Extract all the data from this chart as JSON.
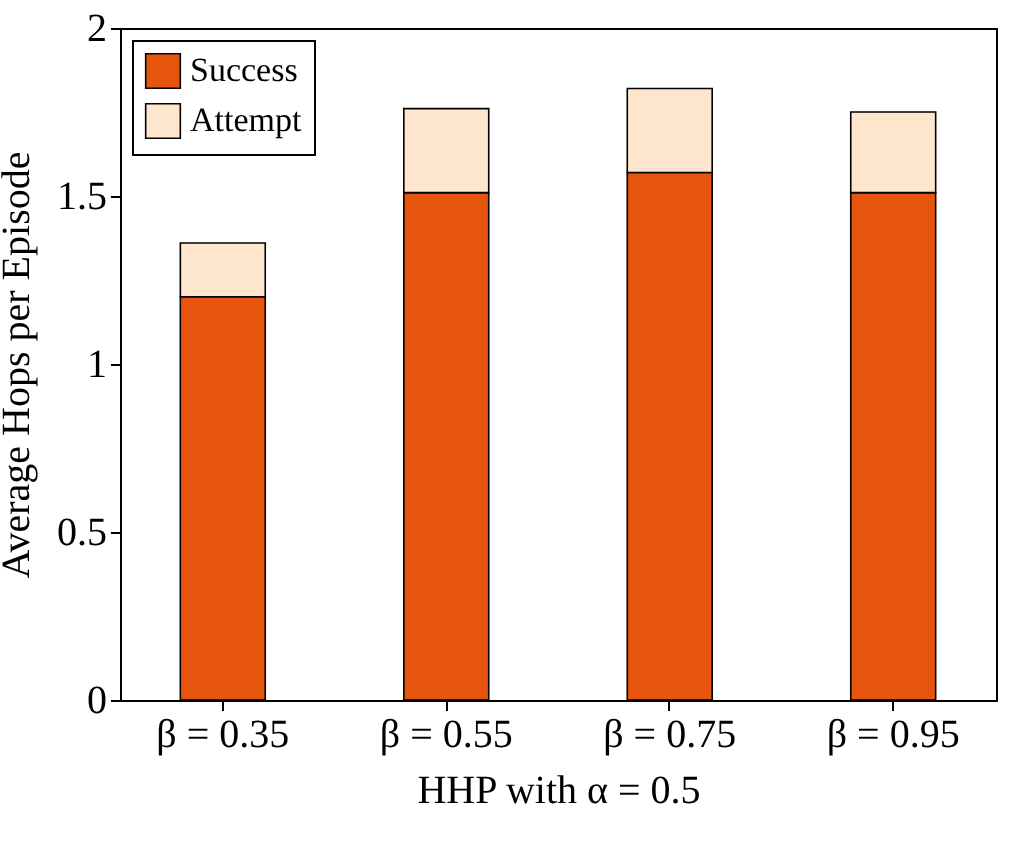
{
  "chart_data": {
    "type": "bar",
    "stacked": true,
    "xlabel": "HHP with α = 0.5",
    "ylabel": "Average Hops per Episode",
    "categories": [
      "β = 0.35",
      "β = 0.55",
      "β = 0.75",
      "β = 0.95"
    ],
    "series": [
      {
        "name": "Success",
        "color": "#e6550d",
        "values": [
          1.2,
          1.51,
          1.57,
          1.51
        ]
      },
      {
        "name": "Attempt",
        "color": "#fee6ce",
        "values": [
          0.16,
          0.25,
          0.25,
          0.24
        ]
      }
    ],
    "ylim": [
      0,
      2
    ],
    "yticks": [
      0,
      0.5,
      1,
      1.5,
      2
    ],
    "grid": false,
    "legend": "top left"
  }
}
